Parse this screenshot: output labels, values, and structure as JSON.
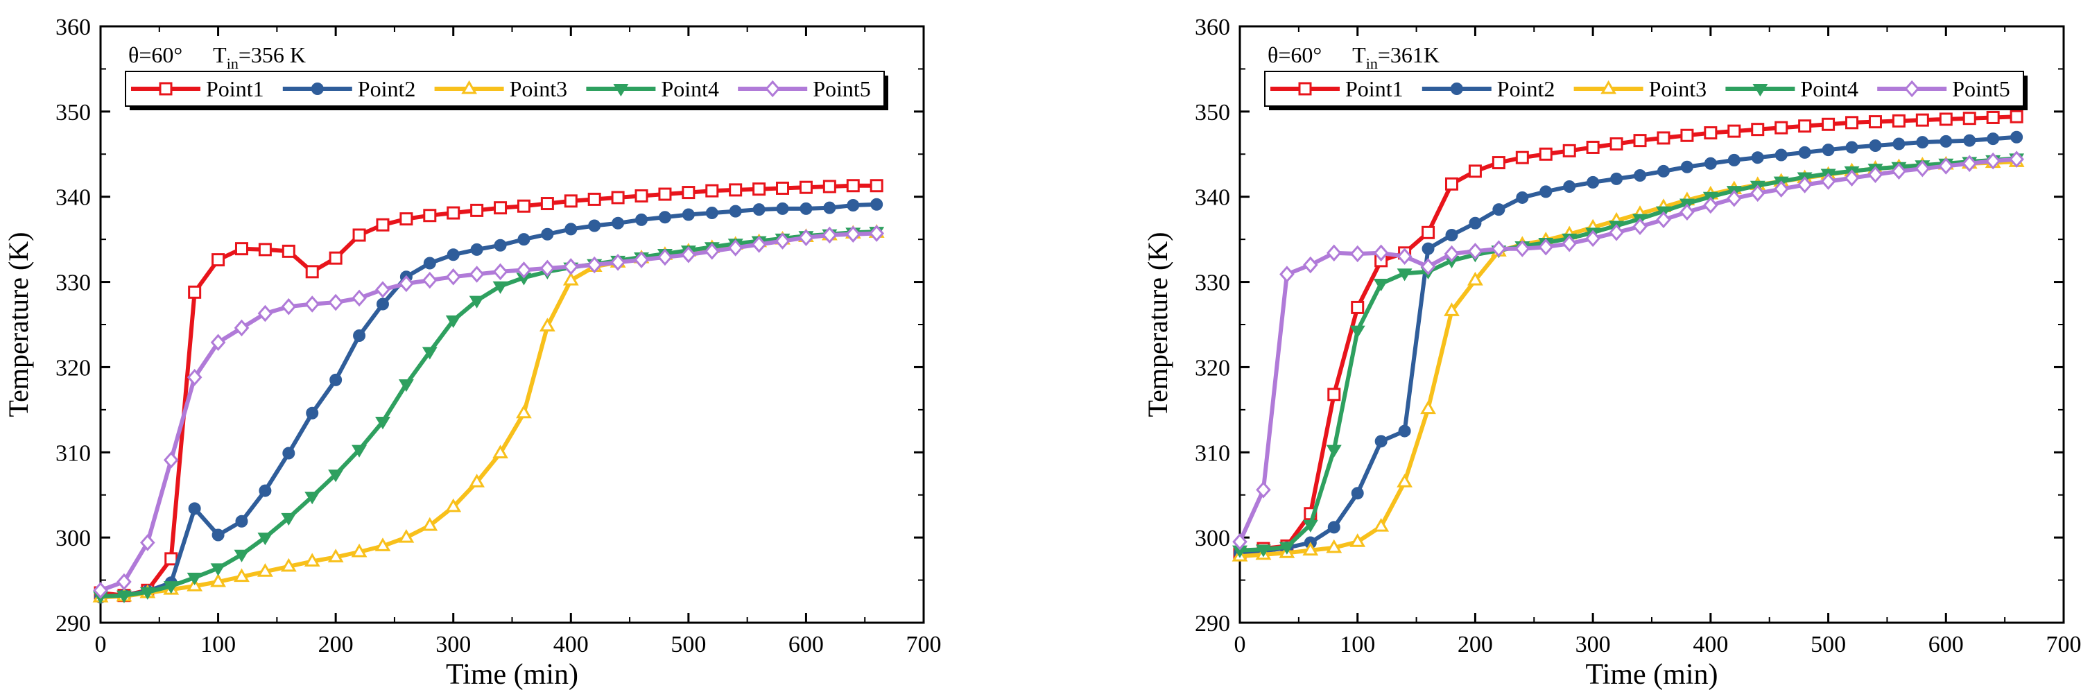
{
  "chart_data": [
    {
      "type": "line",
      "annotation": {
        "theta": "θ=60°",
        "t_prefix": "T",
        "t_sub": "in",
        "t_value": "=356 K"
      },
      "xlabel": "Time (min)",
      "ylabel": "Temperature (K)",
      "xlim": [
        0,
        700
      ],
      "ylim": [
        290,
        360
      ],
      "xticks": [
        0,
        100,
        200,
        300,
        400,
        500,
        600,
        700
      ],
      "yticks": [
        290,
        300,
        310,
        320,
        330,
        340,
        350,
        360
      ],
      "legend_position": "top-left",
      "x": [
        0,
        20,
        40,
        60,
        80,
        100,
        120,
        140,
        160,
        180,
        200,
        220,
        240,
        260,
        280,
        300,
        320,
        340,
        360,
        380,
        400,
        420,
        440,
        460,
        480,
        500,
        520,
        540,
        560,
        580,
        600,
        620,
        640,
        660
      ],
      "series": [
        {
          "name": "Point1",
          "color": "#e8141b",
          "marker": "square",
          "values": [
            293.5,
            293.2,
            293.8,
            297.5,
            328.8,
            332.6,
            333.9,
            333.8,
            333.6,
            331.2,
            332.8,
            335.5,
            336.7,
            337.4,
            337.8,
            338.1,
            338.4,
            338.7,
            338.9,
            339.2,
            339.5,
            339.7,
            339.9,
            340.1,
            340.3,
            340.5,
            340.7,
            340.8,
            340.9,
            341.0,
            341.1,
            341.2,
            341.3,
            341.3
          ]
        },
        {
          "name": "Point2",
          "color": "#2f5d9a",
          "marker": "circle",
          "values": [
            293.0,
            293.2,
            293.7,
            294.7,
            303.4,
            300.3,
            301.9,
            305.5,
            309.9,
            314.6,
            318.5,
            323.7,
            327.4,
            330.6,
            332.2,
            333.2,
            333.8,
            334.3,
            335.0,
            335.6,
            336.2,
            336.6,
            336.9,
            337.3,
            337.6,
            337.9,
            338.1,
            338.3,
            338.5,
            338.6,
            338.6,
            338.7,
            339.0,
            339.1
          ]
        },
        {
          "name": "Point3",
          "color": "#f8c01b",
          "marker": "triangle-up",
          "values": [
            293.0,
            293.1,
            293.5,
            293.9,
            294.3,
            294.8,
            295.4,
            296.0,
            296.6,
            297.2,
            297.7,
            298.3,
            299.0,
            300.0,
            301.4,
            303.6,
            306.5,
            309.9,
            314.6,
            324.8,
            330.2,
            331.8,
            332.3,
            332.8,
            333.2,
            333.6,
            334.0,
            334.4,
            334.7,
            335.0,
            335.3,
            335.5,
            335.7,
            335.8
          ]
        },
        {
          "name": "Point4",
          "color": "#2ea05f",
          "marker": "triangle-down",
          "values": [
            293.1,
            293.2,
            293.6,
            294.3,
            295.3,
            296.4,
            298.0,
            300.0,
            302.3,
            304.8,
            307.4,
            310.3,
            313.6,
            318.0,
            321.8,
            325.5,
            327.8,
            329.5,
            330.5,
            331.2,
            331.7,
            332.1,
            332.5,
            332.9,
            333.3,
            333.7,
            334.1,
            334.5,
            334.8,
            335.1,
            335.4,
            335.6,
            335.8,
            335.9
          ]
        },
        {
          "name": "Point5",
          "color": "#b07ad8",
          "marker": "diamond",
          "values": [
            293.8,
            294.8,
            299.4,
            309.1,
            318.8,
            322.9,
            324.6,
            326.3,
            327.1,
            327.4,
            327.6,
            328.1,
            329.1,
            329.8,
            330.2,
            330.6,
            330.9,
            331.2,
            331.4,
            331.6,
            331.8,
            332.0,
            332.3,
            332.6,
            332.9,
            333.2,
            333.6,
            334.0,
            334.4,
            334.8,
            335.2,
            335.5,
            335.6,
            335.7
          ]
        }
      ]
    },
    {
      "type": "line",
      "annotation": {
        "theta": "θ=60°",
        "t_prefix": "T",
        "t_sub": "in",
        "t_value": "=361K"
      },
      "xlabel": "Time (min)",
      "ylabel": "Temperature (K)",
      "xlim": [
        0,
        700
      ],
      "ylim": [
        290,
        360
      ],
      "xticks": [
        0,
        100,
        200,
        300,
        400,
        500,
        600,
        700
      ],
      "yticks": [
        290,
        300,
        310,
        320,
        330,
        340,
        350,
        360
      ],
      "legend_position": "top-left",
      "x": [
        0,
        20,
        40,
        60,
        80,
        100,
        120,
        140,
        160,
        180,
        200,
        220,
        240,
        260,
        280,
        300,
        320,
        340,
        360,
        380,
        400,
        420,
        440,
        460,
        480,
        500,
        520,
        540,
        560,
        580,
        600,
        620,
        640,
        660
      ],
      "series": [
        {
          "name": "Point1",
          "color": "#e8141b",
          "marker": "square",
          "values": [
            298.2,
            298.7,
            299.0,
            302.8,
            316.8,
            327.0,
            332.5,
            333.4,
            335.8,
            341.5,
            343.0,
            344.0,
            344.6,
            345.0,
            345.4,
            345.8,
            346.2,
            346.6,
            346.9,
            347.2,
            347.5,
            347.7,
            347.9,
            348.1,
            348.3,
            348.5,
            348.7,
            348.8,
            348.9,
            349.0,
            349.1,
            349.2,
            349.3,
            349.4
          ]
        },
        {
          "name": "Point2",
          "color": "#2f5d9a",
          "marker": "circle",
          "values": [
            298.2,
            298.4,
            298.8,
            299.4,
            301.2,
            305.2,
            311.3,
            312.5,
            333.9,
            335.5,
            336.9,
            338.5,
            339.9,
            340.6,
            341.2,
            341.7,
            342.1,
            342.5,
            343.0,
            343.5,
            343.9,
            344.3,
            344.6,
            344.9,
            345.2,
            345.5,
            345.8,
            346.0,
            346.2,
            346.4,
            346.5,
            346.6,
            346.8,
            347.0
          ]
        },
        {
          "name": "Point3",
          "color": "#f8c01b",
          "marker": "triangle-up",
          "values": [
            297.8,
            298.0,
            298.2,
            298.5,
            298.8,
            299.5,
            301.3,
            306.5,
            315.1,
            326.6,
            330.2,
            333.6,
            334.4,
            334.9,
            335.6,
            336.4,
            337.2,
            338.0,
            338.8,
            339.6,
            340.3,
            340.9,
            341.4,
            341.8,
            342.2,
            342.6,
            343.0,
            343.3,
            343.5,
            343.7,
            343.8,
            343.9,
            344.0,
            344.1
          ]
        },
        {
          "name": "Point4",
          "color": "#2ea05f",
          "marker": "triangle-down",
          "values": [
            298.5,
            298.6,
            298.9,
            301.5,
            310.3,
            324.3,
            329.8,
            331.0,
            331.2,
            332.5,
            333.2,
            333.7,
            334.2,
            334.6,
            335.1,
            335.8,
            336.6,
            337.4,
            338.3,
            339.2,
            340.0,
            340.7,
            341.3,
            341.8,
            342.3,
            342.7,
            343.0,
            343.3,
            343.5,
            343.7,
            343.9,
            344.1,
            344.3,
            344.5
          ]
        },
        {
          "name": "Point5",
          "color": "#b07ad8",
          "marker": "diamond",
          "values": [
            299.5,
            305.6,
            330.9,
            332.0,
            333.4,
            333.3,
            333.4,
            333.0,
            331.8,
            333.3,
            333.6,
            333.9,
            333.9,
            334.1,
            334.5,
            335.1,
            335.8,
            336.5,
            337.3,
            338.2,
            339.0,
            339.8,
            340.4,
            340.9,
            341.4,
            341.8,
            342.2,
            342.6,
            343.0,
            343.3,
            343.6,
            343.9,
            344.2,
            344.4
          ]
        }
      ]
    }
  ]
}
